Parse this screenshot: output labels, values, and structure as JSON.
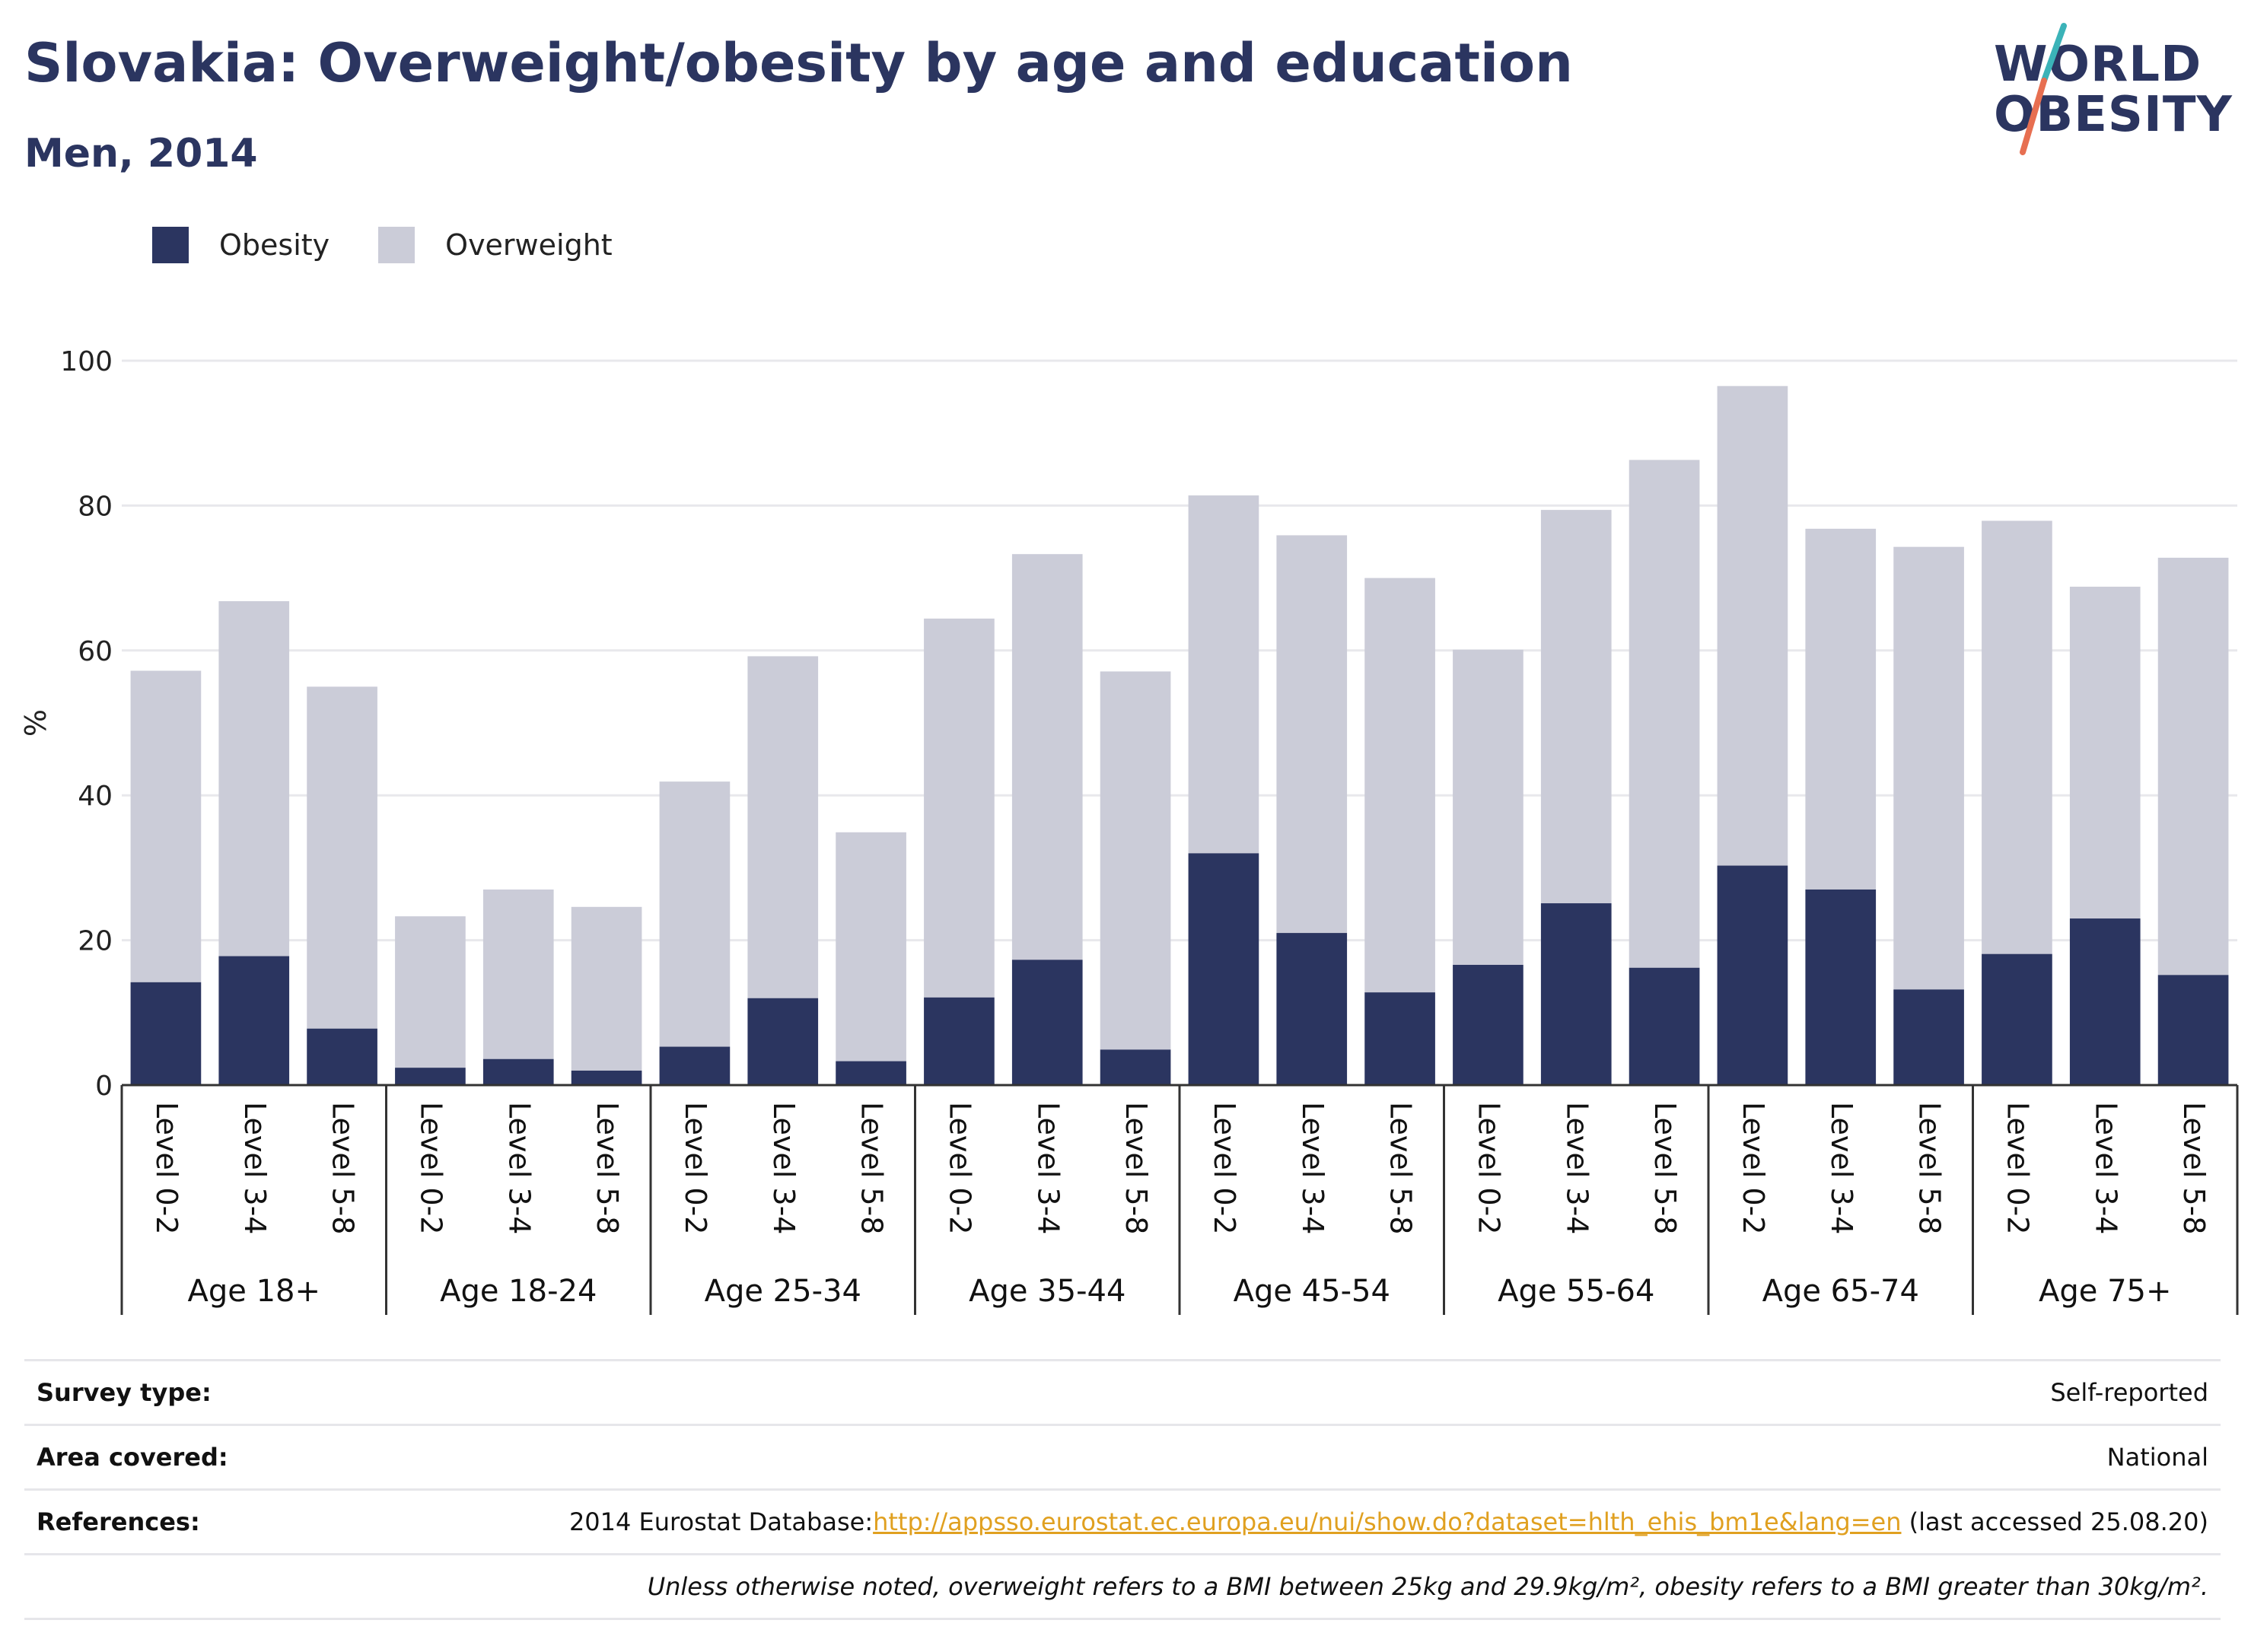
{
  "header": {
    "title": "Slovakia: Overweight/obesity by age and education",
    "subtitle": "Men, 2014"
  },
  "logo": {
    "line1": "WORLD",
    "line2": "OBESITY"
  },
  "colors": {
    "obesity": "#2b3560",
    "overweight": "#cbccd8",
    "title": "#2b3560",
    "link": "#e0a020",
    "logo_slash_teal": "#3bb3b8",
    "logo_slash_coral": "#e76f51"
  },
  "legend": {
    "obesity": "Obesity",
    "overweight": "Overweight"
  },
  "chart_data": {
    "type": "bar",
    "stacked": true,
    "ylabel": "%",
    "ylim": [
      0,
      100
    ],
    "yticks": [
      0,
      20,
      40,
      60,
      80,
      100
    ],
    "grid": true,
    "legend_position": "top-left",
    "groups": [
      {
        "label": "Age 18+",
        "categories": [
          "Level 0-2",
          "Level 3-4",
          "Level 5-8"
        ],
        "obesity": [
          14.2,
          17.8,
          7.8
        ],
        "total": [
          57.2,
          66.8,
          55.0
        ]
      },
      {
        "label": "Age 18-24",
        "categories": [
          "Level 0-2",
          "Level 3-4",
          "Level 5-8"
        ],
        "obesity": [
          2.4,
          3.6,
          2.0
        ],
        "total": [
          23.3,
          27.0,
          24.6
        ]
      },
      {
        "label": "Age 25-34",
        "categories": [
          "Level 0-2",
          "Level 3-4",
          "Level 5-8"
        ],
        "obesity": [
          5.3,
          12.0,
          3.3
        ],
        "total": [
          41.9,
          59.2,
          34.9
        ]
      },
      {
        "label": "Age 35-44",
        "categories": [
          "Level 0-2",
          "Level 3-4",
          "Level 5-8"
        ],
        "obesity": [
          12.1,
          17.3,
          4.9
        ],
        "total": [
          64.4,
          73.3,
          57.1
        ]
      },
      {
        "label": "Age 45-54",
        "categories": [
          "Level 0-2",
          "Level 3-4",
          "Level 5-8"
        ],
        "obesity": [
          32.0,
          21.0,
          12.8
        ],
        "total": [
          81.4,
          75.9,
          70.0
        ]
      },
      {
        "label": "Age 55-64",
        "categories": [
          "Level 0-2",
          "Level 3-4",
          "Level 5-8"
        ],
        "obesity": [
          16.6,
          25.1,
          16.2
        ],
        "total": [
          60.1,
          79.4,
          86.3
        ]
      },
      {
        "label": "Age 65-74",
        "categories": [
          "Level 0-2",
          "Level 3-4",
          "Level 5-8"
        ],
        "obesity": [
          30.3,
          27.0,
          13.2
        ],
        "total": [
          96.5,
          76.8,
          74.3
        ]
      },
      {
        "label": "Age 75+",
        "categories": [
          "Level 0-2",
          "Level 3-4",
          "Level 5-8"
        ],
        "obesity": [
          18.1,
          23.0,
          15.2
        ],
        "total": [
          77.9,
          68.8,
          72.8
        ]
      }
    ]
  },
  "meta": [
    {
      "key": "Survey type:",
      "value": "Self-reported"
    },
    {
      "key": "Area covered:",
      "value": "National"
    },
    {
      "key": "References:",
      "value_prefix": "2014 Eurostat Database:",
      "link": "http://appsso.eurostat.ec.europa.eu/nui/show.do?dataset=hlth_ehis_bm1e&lang=en",
      "value_suffix": " (last accessed 25.08.20)"
    },
    {
      "key": "",
      "value": "Unless otherwise noted, overweight refers to a BMI between 25kg and 29.9kg/m², obesity refers to a BMI greater than 30kg/m²."
    }
  ]
}
